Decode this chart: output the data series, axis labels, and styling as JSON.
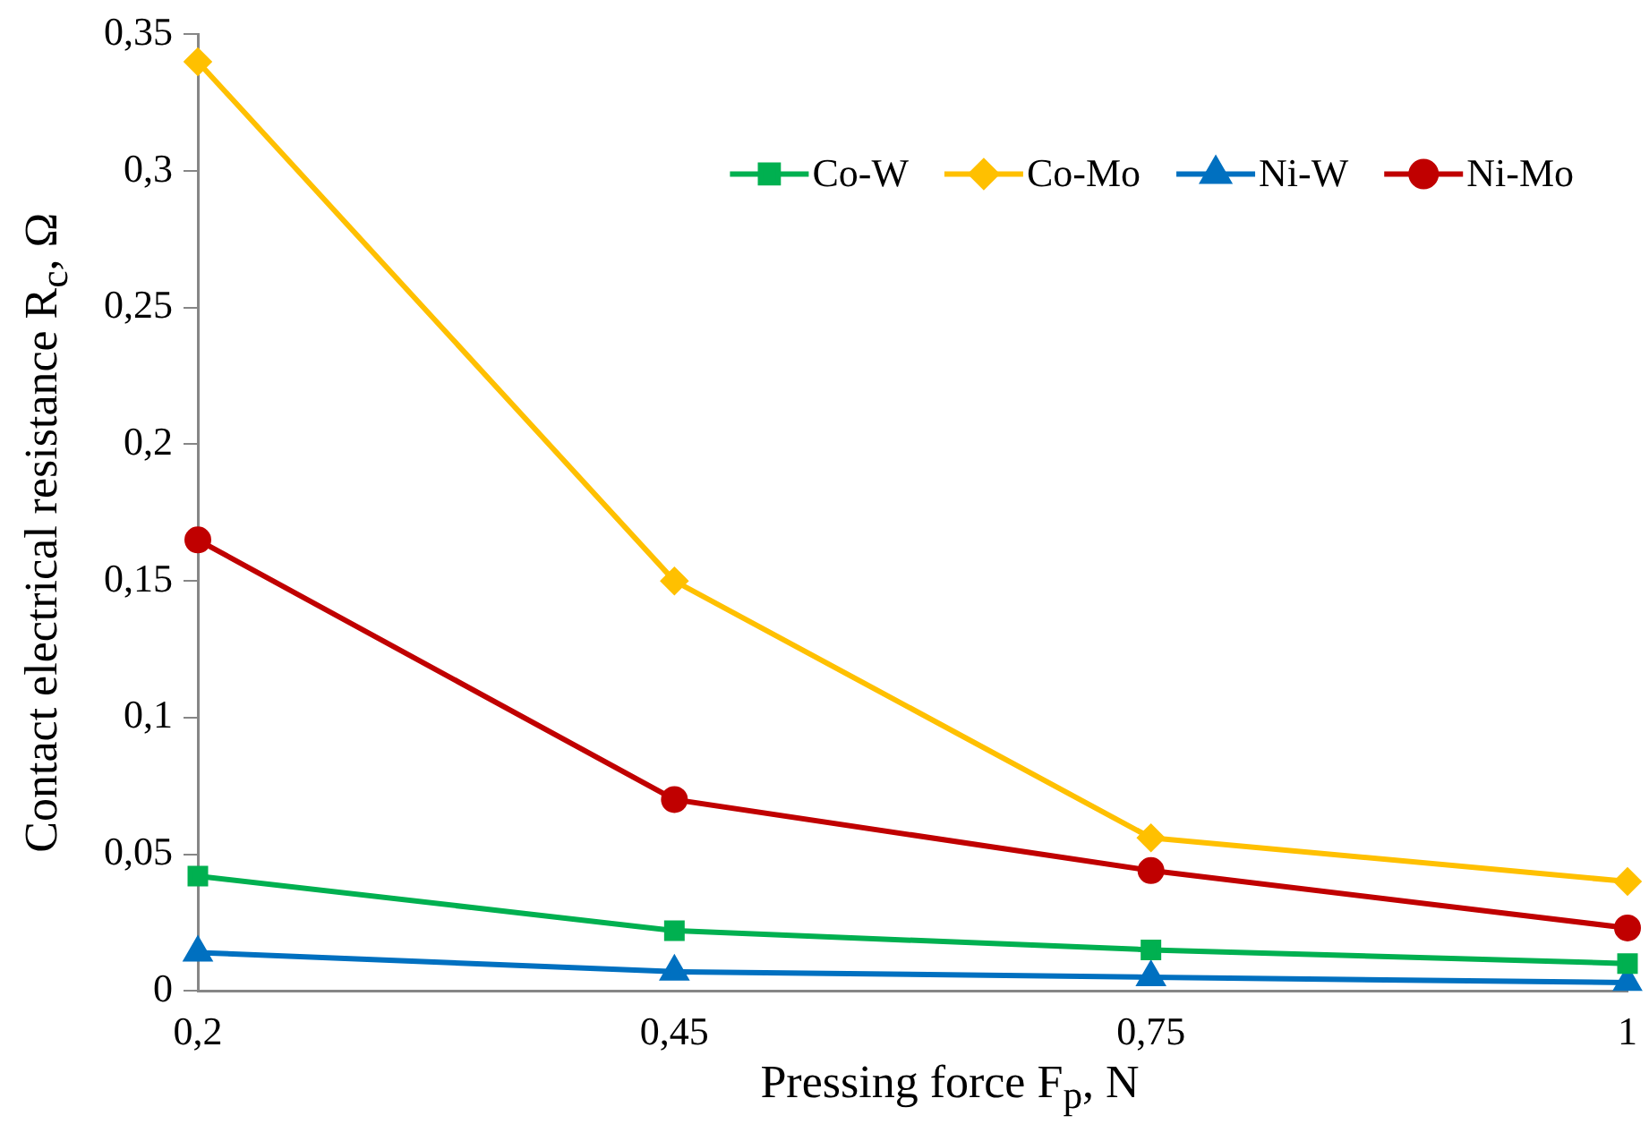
{
  "chart_data": {
    "type": "line",
    "xlabel": "Pressing force F$_{p}$, N",
    "ylabel": "Contact electrical resistance R$_{c}$, Ω",
    "categories": [
      "0,2",
      "0,45",
      "0,75",
      "1"
    ],
    "series": [
      {
        "name": "Co-W",
        "color": "#00b050",
        "marker": "square",
        "values": [
          0.042,
          0.022,
          0.015,
          0.01
        ]
      },
      {
        "name": "Co-Mo",
        "color": "#ffc000",
        "marker": "diamond",
        "values": [
          0.34,
          0.15,
          0.056,
          0.04
        ]
      },
      {
        "name": "Ni-W",
        "color": "#0070c0",
        "marker": "triangle",
        "values": [
          0.014,
          0.007,
          0.005,
          0.003
        ]
      },
      {
        "name": "Ni-Mo",
        "color": "#c00000",
        "marker": "circle",
        "values": [
          0.165,
          0.07,
          0.044,
          0.023
        ]
      }
    ],
    "ylim": [
      0,
      0.35
    ],
    "yticks": [
      0,
      {
        "value": 0.05,
        "label": "0,05"
      },
      {
        "value": 0.1,
        "label": "0,1"
      },
      {
        "value": 0.15,
        "label": "0,15"
      },
      {
        "value": 0.2,
        "label": "0,2"
      },
      {
        "value": 0.25,
        "label": "0,25"
      },
      {
        "value": 0.3,
        "label": "0,3"
      },
      {
        "value": 0.35,
        "label": "0,35"
      }
    ],
    "grid": false,
    "legend": "top right",
    "line_style": "solid"
  }
}
